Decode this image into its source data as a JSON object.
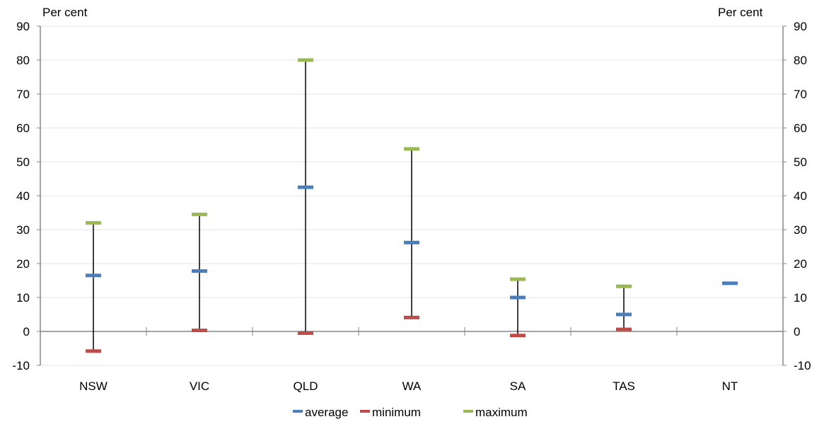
{
  "chart_data": {
    "type": "range",
    "ylabel_left": "Per cent",
    "ylabel_right": "Per cent",
    "ylim": [
      -10,
      90
    ],
    "yticks": [
      -10,
      0,
      10,
      20,
      30,
      40,
      50,
      60,
      70,
      80,
      90
    ],
    "grid": true,
    "legend_position": "bottom",
    "categories": [
      "NSW",
      "VIC",
      "QLD",
      "WA",
      "SA",
      "TAS",
      "NT"
    ],
    "series": [
      {
        "name": "average",
        "color": "#4a7ebb",
        "values": [
          16.5,
          17.8,
          42.5,
          26.2,
          10.0,
          5.0,
          14.2
        ]
      },
      {
        "name": "minimum",
        "color": "#be4b48",
        "values": [
          -5.8,
          0.3,
          -0.5,
          4.1,
          -1.2,
          0.6,
          null
        ]
      },
      {
        "name": "maximum",
        "color": "#98b954",
        "values": [
          32.0,
          34.5,
          80.0,
          53.8,
          15.4,
          13.3,
          null
        ]
      }
    ]
  }
}
